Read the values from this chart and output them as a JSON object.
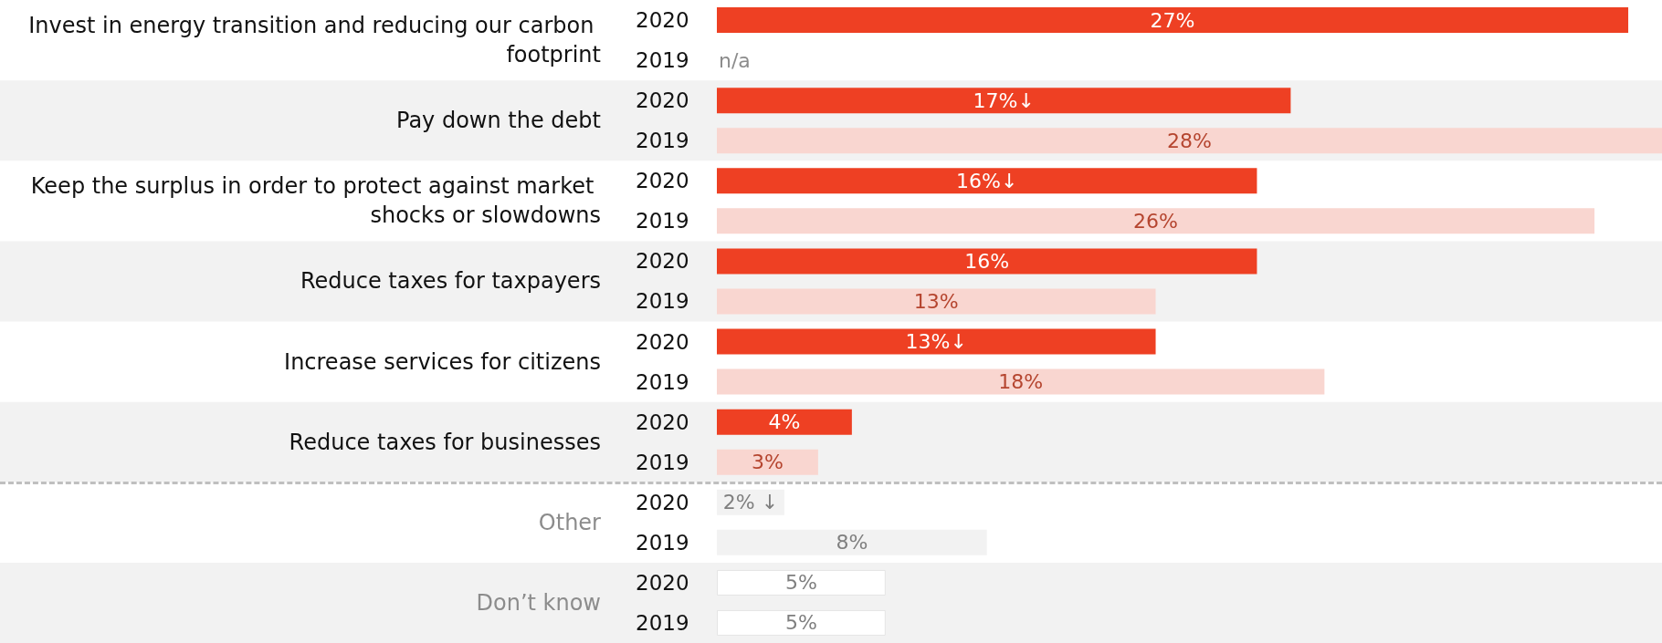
{
  "chart_data": {
    "type": "bar",
    "orientation": "horizontal",
    "categories": [
      "Invest in energy transition and reducing our carbon footprint",
      "Pay down the debt",
      "Keep the surplus in order to protect against market shocks or slowdowns",
      "Reduce taxes for taxpayers",
      "Increase services for citizens",
      "Reduce taxes for businesses",
      "Other",
      "Don’t know"
    ],
    "series": [
      {
        "name": "2020",
        "color": "#ee4023",
        "values": [
          27,
          17,
          16,
          16,
          13,
          4,
          2,
          5
        ],
        "colors": [
          "#ee4023",
          "#ee4023",
          "#ee4023",
          "#ee4023",
          "#ee4023",
          "#ee4023",
          "#f2f2f2",
          "#ffffff"
        ],
        "value_labels": [
          "27%",
          "17%↓",
          "16%↓",
          "16%",
          "13%↓",
          "4%",
          "2% ↓",
          "5%"
        ]
      },
      {
        "name": "2019",
        "color": "#f9d6d0",
        "values": [
          null,
          28,
          26,
          13,
          18,
          3,
          8,
          5
        ],
        "colors": [
          "#f9d6d0",
          "#f9d6d0",
          "#f9d6d0",
          "#f9d6d0",
          "#f9d6d0",
          "#f9d6d0",
          "#f2f2f2",
          "#ffffff"
        ],
        "value_labels": [
          "n/a",
          "28%",
          "26%",
          "13%",
          "18%",
          "3%",
          "8%",
          "5%"
        ]
      }
    ],
    "xlim": [
      0,
      28
    ],
    "tick_labels": "y",
    "legend": false
  }
}
